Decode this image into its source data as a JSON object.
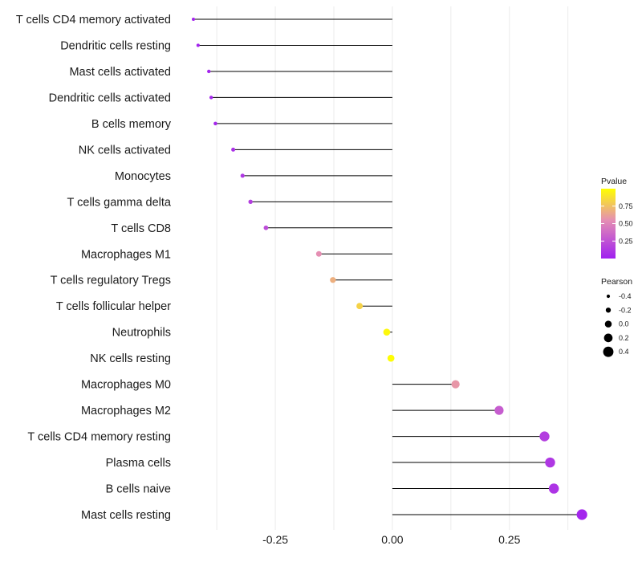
{
  "chart_data": {
    "type": "lollipop",
    "xlabel": "",
    "ylabel": "",
    "xlim": [
      -0.425,
      0.415
    ],
    "x_ticks": [
      -0.25,
      0.0,
      0.25
    ],
    "x_tick_labels": [
      "-0.25",
      "0.00",
      "0.25"
    ],
    "baseline": 0.0,
    "grid": true,
    "points": [
      {
        "label": "T cells CD4 memory activated",
        "value": -0.425,
        "pvalue": 0.02
      },
      {
        "label": "Dendritic cells resting",
        "value": -0.415,
        "pvalue": 0.02
      },
      {
        "label": "Mast cells activated",
        "value": -0.392,
        "pvalue": 0.03
      },
      {
        "label": "Dendritic cells activated",
        "value": -0.387,
        "pvalue": 0.03
      },
      {
        "label": "B cells memory",
        "value": -0.378,
        "pvalue": 0.04
      },
      {
        "label": "NK cells activated",
        "value": -0.34,
        "pvalue": 0.08
      },
      {
        "label": "Monocytes",
        "value": -0.32,
        "pvalue": 0.12
      },
      {
        "label": "T cells gamma delta",
        "value": -0.303,
        "pvalue": 0.15
      },
      {
        "label": "T cells CD8",
        "value": -0.27,
        "pvalue": 0.22
      },
      {
        "label": "Macrophages M1",
        "value": -0.157,
        "pvalue": 0.55
      },
      {
        "label": "T cells regulatory  Tregs ",
        "value": -0.127,
        "pvalue": 0.68
      },
      {
        "label": "T cells follicular helper",
        "value": -0.07,
        "pvalue": 0.82
      },
      {
        "label": "Neutrophils",
        "value": -0.012,
        "pvalue": 0.97
      },
      {
        "label": "NK cells resting",
        "value": -0.003,
        "pvalue": 0.99
      },
      {
        "label": "Macrophages M0",
        "value": 0.135,
        "pvalue": 0.58
      },
      {
        "label": "Macrophages M2",
        "value": 0.228,
        "pvalue": 0.3
      },
      {
        "label": "T cells CD4 memory resting",
        "value": 0.325,
        "pvalue": 0.15
      },
      {
        "label": "Plasma cells",
        "value": 0.337,
        "pvalue": 0.12
      },
      {
        "label": "B cells naive",
        "value": 0.345,
        "pvalue": 0.1
      },
      {
        "label": "Mast cells resting",
        "value": 0.405,
        "pvalue": 0.03
      }
    ],
    "color_legend": {
      "title": "Pvalue",
      "breaks": [
        0.75,
        0.5,
        0.25
      ],
      "labels": [
        "0.75",
        "0.50",
        "0.25"
      ],
      "range": [
        0.0,
        1.0
      ],
      "low_color": "#a020f0",
      "mid_color": "#e58fb3",
      "high_color": "#ffff00"
    },
    "size_legend": {
      "title": "Pearson",
      "breaks": [
        -0.4,
        -0.2,
        0.0,
        0.2,
        0.4
      ],
      "labels": [
        "-0.4",
        "-0.2",
        "0.0",
        "0.2",
        "0.4"
      ],
      "range": [
        -0.425,
        0.405
      ]
    }
  }
}
